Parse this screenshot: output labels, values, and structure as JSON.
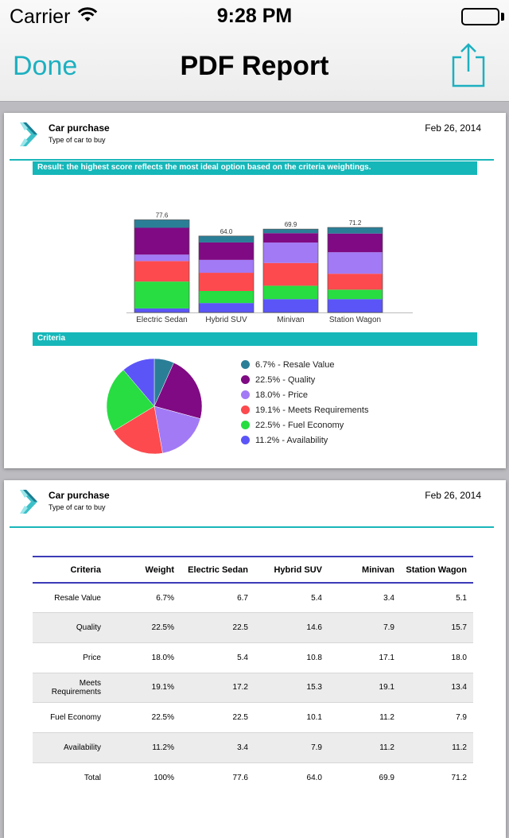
{
  "status_bar": {
    "carrier": "Carrier",
    "time": "9:28 PM"
  },
  "nav": {
    "done_label": "Done",
    "title": "PDF Report"
  },
  "report": {
    "title": "Car purchase",
    "subtitle": "Type of car to buy",
    "date": "Feb 26, 2014",
    "result_banner": "Result: the highest score reflects the most ideal option based on the criteria weightings.",
    "criteria_banner": "Criteria"
  },
  "colors": {
    "accent": "#1db0c0",
    "resale": "#2a7f97",
    "quality": "#7f0a83",
    "price": "#a27af5",
    "meets": "#fc4a4e",
    "fuel": "#27dd41",
    "availability": "#5b55f8"
  },
  "chart_data": [
    {
      "type": "bar",
      "stacked": true,
      "categories": [
        "Electric Sedan",
        "Hybrid SUV",
        "Minivan",
        "Station Wagon"
      ],
      "totals": [
        77.6,
        64.0,
        69.9,
        71.2
      ],
      "total_labels": [
        "77.6",
        "64.0",
        "69.9",
        "71.2"
      ],
      "series": [
        {
          "name": "Availability",
          "color": "#5b55f8",
          "values": [
            3.4,
            7.9,
            11.2,
            11.2
          ]
        },
        {
          "name": "Fuel Economy",
          "color": "#27dd41",
          "values": [
            22.5,
            10.1,
            11.2,
            7.9
          ]
        },
        {
          "name": "Meets Requirements",
          "color": "#fc4a4e",
          "values": [
            17.2,
            15.3,
            19.1,
            13.4
          ]
        },
        {
          "name": "Price",
          "color": "#a27af5",
          "values": [
            5.4,
            10.8,
            17.1,
            18.0
          ]
        },
        {
          "name": "Quality",
          "color": "#7f0a83",
          "values": [
            22.5,
            14.6,
            7.9,
            15.7
          ]
        },
        {
          "name": "Resale Value",
          "color": "#2a7f97",
          "values": [
            6.7,
            5.4,
            3.4,
            5.1
          ]
        }
      ]
    },
    {
      "type": "pie",
      "slices": [
        {
          "label": "6.7% - Resale Value",
          "value": 6.7,
          "color": "#2a7f97"
        },
        {
          "label": "22.5% - Quality",
          "value": 22.5,
          "color": "#7f0a83"
        },
        {
          "label": "18.0% - Price",
          "value": 18.0,
          "color": "#a27af5"
        },
        {
          "label": "19.1% - Meets Requirements",
          "value": 19.1,
          "color": "#fc4a4e"
        },
        {
          "label": "22.5% - Fuel Economy",
          "value": 22.5,
          "color": "#27dd41"
        },
        {
          "label": "11.2% - Availability",
          "value": 11.2,
          "color": "#5b55f8"
        }
      ]
    }
  ],
  "table": {
    "headers": [
      "Criteria",
      "Weight",
      "Electric Sedan",
      "Hybrid SUV",
      "Minivan",
      "Station Wagon"
    ],
    "rows": [
      [
        "Resale Value",
        "6.7%",
        "6.7",
        "5.4",
        "3.4",
        "5.1"
      ],
      [
        "Quality",
        "22.5%",
        "22.5",
        "14.6",
        "7.9",
        "15.7"
      ],
      [
        "Price",
        "18.0%",
        "5.4",
        "10.8",
        "17.1",
        "18.0"
      ],
      [
        "Meets Requirements",
        "19.1%",
        "17.2",
        "15.3",
        "19.1",
        "13.4"
      ],
      [
        "Fuel Economy",
        "22.5%",
        "22.5",
        "10.1",
        "11.2",
        "7.9"
      ],
      [
        "Availability",
        "11.2%",
        "3.4",
        "7.9",
        "11.2",
        "11.2"
      ],
      [
        "Total",
        "100%",
        "77.6",
        "64.0",
        "69.9",
        "71.2"
      ]
    ]
  }
}
